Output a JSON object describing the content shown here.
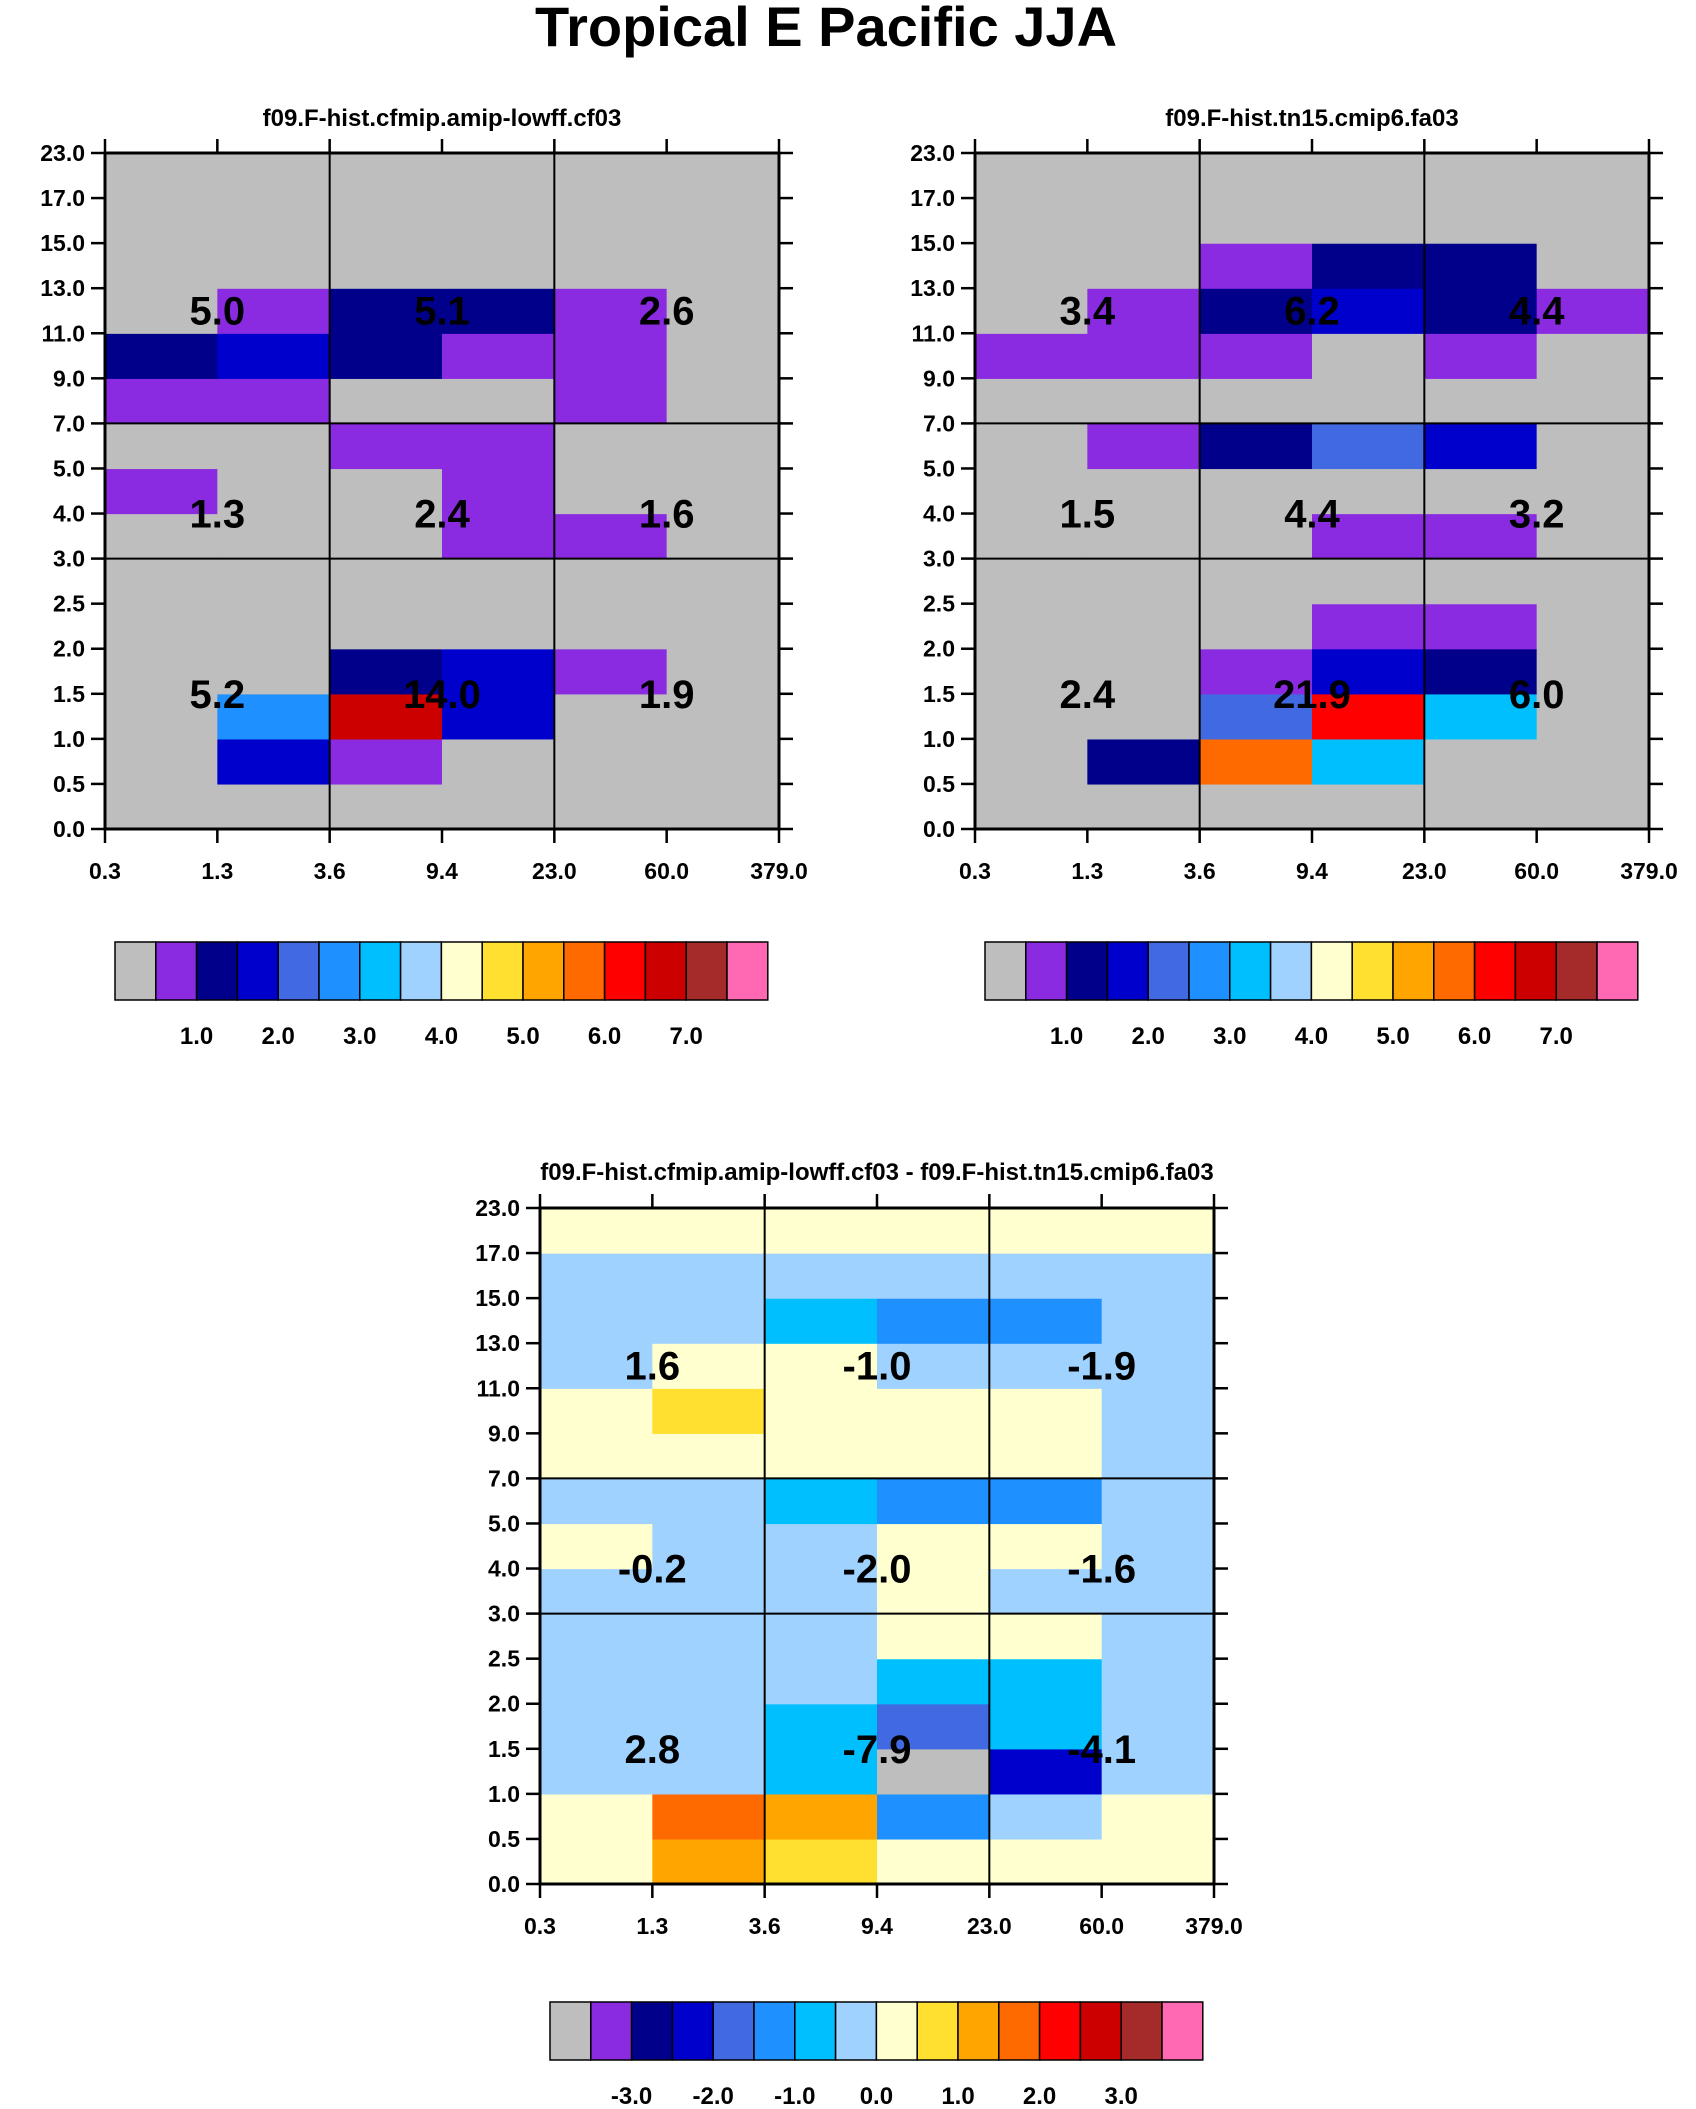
{
  "title": "Tropical E Pacific JJA",
  "colors": {
    "text": "#000000",
    "frame": "#000000",
    "missing": "#bebebe"
  },
  "chart_data": [
    {
      "type": "heatmap",
      "title": "f09.F-hist.cfmip.amip-lowff.cf03",
      "x_tick_labels": [
        "0.3",
        "1.3",
        "3.6",
        "9.4",
        "23.0",
        "60.0",
        "379.0"
      ],
      "y_tick_labels": [
        "0.0",
        "0.5",
        "1.0",
        "1.5",
        "2.0",
        "2.5",
        "3.0",
        "4.0",
        "5.0",
        "7.0",
        "9.0",
        "11.0",
        "13.0",
        "15.0",
        "17.0",
        "23.0"
      ],
      "palette": [
        "#bebebe",
        "#8a2be2",
        "#00008b",
        "#0000cd",
        "#4169e1",
        "#1e90ff",
        "#00bfff",
        "#a0d2ff",
        "#ffffd0",
        "#ffe030",
        "#ffa500",
        "#ff6a00",
        "#ff0000",
        "#cd0000",
        "#a52a2a",
        "#ff69b4"
      ],
      "cells": [
        [
          0,
          0,
          0,
          0,
          0,
          0
        ],
        [
          0,
          3,
          1,
          0,
          0,
          0
        ],
        [
          0,
          5,
          13,
          3,
          0,
          0
        ],
        [
          0,
          0,
          2,
          3,
          1,
          0
        ],
        [
          0,
          0,
          0,
          0,
          0,
          0
        ],
        [
          0,
          0,
          0,
          0,
          0,
          0
        ],
        [
          0,
          0,
          0,
          1,
          1,
          0
        ],
        [
          1,
          0,
          0,
          1,
          0,
          0
        ],
        [
          0,
          0,
          1,
          1,
          0,
          0
        ],
        [
          1,
          1,
          0,
          0,
          1,
          0
        ],
        [
          2,
          3,
          2,
          1,
          1,
          0
        ],
        [
          0,
          1,
          2,
          2,
          1,
          0
        ],
        [
          0,
          0,
          0,
          0,
          0,
          0
        ],
        [
          0,
          0,
          0,
          0,
          0,
          0
        ],
        [
          0,
          0,
          0,
          0,
          0,
          0
        ]
      ],
      "box_values": [
        [
          "5.2",
          "14.0",
          "1.9"
        ],
        [
          "1.3",
          "2.4",
          "1.6"
        ],
        [
          "5.0",
          "5.1",
          "2.6"
        ]
      ],
      "colorbar": {
        "colors": [
          "#bebebe",
          "#8a2be2",
          "#00008b",
          "#0000cd",
          "#4169e1",
          "#1e90ff",
          "#00bfff",
          "#a0d2ff",
          "#ffffd0",
          "#ffe030",
          "#ffa500",
          "#ff6a00",
          "#ff0000",
          "#cd0000",
          "#a52a2a",
          "#ff69b4"
        ],
        "labels": [
          "1.0",
          "2.0",
          "3.0",
          "4.0",
          "5.0",
          "6.0",
          "7.0"
        ]
      }
    },
    {
      "type": "heatmap",
      "title": "f09.F-hist.tn15.cmip6.fa03",
      "x_tick_labels": [
        "0.3",
        "1.3",
        "3.6",
        "9.4",
        "23.0",
        "60.0",
        "379.0"
      ],
      "y_tick_labels": [
        "0.0",
        "0.5",
        "1.0",
        "1.5",
        "2.0",
        "2.5",
        "3.0",
        "4.0",
        "5.0",
        "7.0",
        "9.0",
        "11.0",
        "13.0",
        "15.0",
        "17.0",
        "23.0"
      ],
      "palette": [
        "#bebebe",
        "#8a2be2",
        "#00008b",
        "#0000cd",
        "#4169e1",
        "#1e90ff",
        "#00bfff",
        "#a0d2ff",
        "#ffffd0",
        "#ffe030",
        "#ffa500",
        "#ff6a00",
        "#ff0000",
        "#cd0000",
        "#a52a2a",
        "#ff69b4"
      ],
      "cells": [
        [
          0,
          0,
          0,
          0,
          0,
          0
        ],
        [
          0,
          2,
          11,
          6,
          0,
          0
        ],
        [
          0,
          0,
          4,
          12,
          6,
          0
        ],
        [
          0,
          0,
          1,
          3,
          2,
          0
        ],
        [
          0,
          0,
          0,
          1,
          1,
          0
        ],
        [
          0,
          0,
          0,
          0,
          0,
          0
        ],
        [
          0,
          0,
          0,
          1,
          1,
          0
        ],
        [
          0,
          0,
          0,
          0,
          0,
          0
        ],
        [
          0,
          1,
          2,
          4,
          3,
          0
        ],
        [
          0,
          0,
          0,
          0,
          0,
          0
        ],
        [
          1,
          1,
          1,
          0,
          1,
          0
        ],
        [
          0,
          1,
          2,
          3,
          2,
          1
        ],
        [
          0,
          0,
          1,
          2,
          2,
          0
        ],
        [
          0,
          0,
          0,
          0,
          0,
          0
        ],
        [
          0,
          0,
          0,
          0,
          0,
          0
        ]
      ],
      "box_values": [
        [
          "2.4",
          "21.9",
          "6.0"
        ],
        [
          "1.5",
          "4.4",
          "3.2"
        ],
        [
          "3.4",
          "6.2",
          "4.4"
        ]
      ],
      "colorbar": {
        "colors": [
          "#bebebe",
          "#8a2be2",
          "#00008b",
          "#0000cd",
          "#4169e1",
          "#1e90ff",
          "#00bfff",
          "#a0d2ff",
          "#ffffd0",
          "#ffe030",
          "#ffa500",
          "#ff6a00",
          "#ff0000",
          "#cd0000",
          "#a52a2a",
          "#ff69b4"
        ],
        "labels": [
          "1.0",
          "2.0",
          "3.0",
          "4.0",
          "5.0",
          "6.0",
          "7.0"
        ]
      }
    },
    {
      "type": "heatmap",
      "title": "f09.F-hist.cfmip.amip-lowff.cf03 - f09.F-hist.tn15.cmip6.fa03",
      "x_tick_labels": [
        "0.3",
        "1.3",
        "3.6",
        "9.4",
        "23.0",
        "60.0",
        "379.0"
      ],
      "y_tick_labels": [
        "0.0",
        "0.5",
        "1.0",
        "1.5",
        "2.0",
        "2.5",
        "3.0",
        "4.0",
        "5.0",
        "7.0",
        "9.0",
        "11.0",
        "13.0",
        "15.0",
        "17.0",
        "23.0"
      ],
      "palette": [
        "#bebebe",
        "#8a2be2",
        "#00008b",
        "#0000cd",
        "#4169e1",
        "#1e90ff",
        "#00bfff",
        "#a0d2ff",
        "#ffffd0",
        "#ffe030",
        "#ffa500",
        "#ff6a00",
        "#ff0000",
        "#cd0000",
        "#a52a2a",
        "#ff69b4"
      ],
      "cells": [
        [
          8,
          10,
          9,
          8,
          8,
          8
        ],
        [
          8,
          11,
          10,
          5,
          7,
          8
        ],
        [
          7,
          7,
          6,
          0,
          3,
          7
        ],
        [
          7,
          7,
          6,
          4,
          6,
          7
        ],
        [
          7,
          7,
          7,
          6,
          6,
          7
        ],
        [
          7,
          7,
          7,
          8,
          8,
          7
        ],
        [
          7,
          7,
          7,
          8,
          7,
          7
        ],
        [
          8,
          7,
          7,
          8,
          8,
          7
        ],
        [
          7,
          7,
          6,
          5,
          5,
          7
        ],
        [
          8,
          8,
          8,
          8,
          8,
          7
        ],
        [
          8,
          9,
          8,
          8,
          8,
          7
        ],
        [
          7,
          8,
          8,
          7,
          7,
          7
        ],
        [
          7,
          7,
          6,
          5,
          5,
          7
        ],
        [
          7,
          7,
          7,
          7,
          7,
          7
        ],
        [
          8,
          8,
          8,
          8,
          8,
          8
        ]
      ],
      "box_values": [
        [
          "2.8",
          "-7.9",
          "-4.1"
        ],
        [
          "-0.2",
          "-2.0",
          "-1.6"
        ],
        [
          "1.6",
          "-1.0",
          "-1.9"
        ]
      ],
      "colorbar": {
        "colors": [
          "#bebebe",
          "#8a2be2",
          "#00008b",
          "#0000cd",
          "#4169e1",
          "#1e90ff",
          "#00bfff",
          "#a0d2ff",
          "#ffffd0",
          "#ffe030",
          "#ffa500",
          "#ff6a00",
          "#ff0000",
          "#cd0000",
          "#a52a2a",
          "#ff69b4"
        ],
        "labels": [
          "-3.0",
          "-2.0",
          "-1.0",
          "0.0",
          "1.0",
          "2.0",
          "3.0"
        ]
      }
    }
  ]
}
